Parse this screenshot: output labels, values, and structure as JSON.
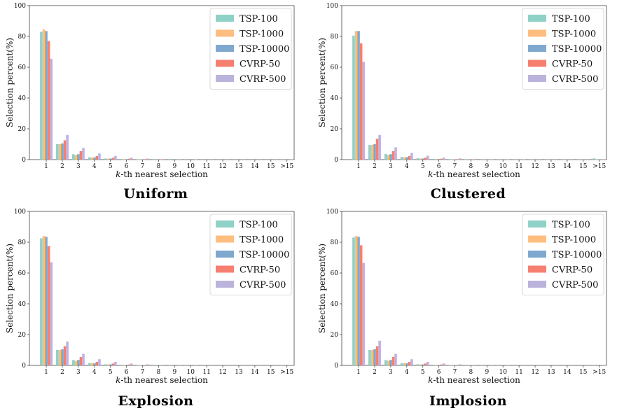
{
  "colors": [
    "#8fd1c6",
    "#ffbd7f",
    "#7fa8cf",
    "#f67f70",
    "#bcb3dc"
  ],
  "chart_data": [
    {
      "type": "bar",
      "title": "Uniform",
      "xlabel_prefix": "k",
      "xlabel_suffix": "-th nearest selection",
      "ylabel": "Selection percent(%)",
      "ylim": [
        0,
        100
      ],
      "yticks": [
        "0",
        "20",
        "40",
        "60",
        "80",
        "100"
      ],
      "categories": [
        "1",
        "2",
        "3",
        "4",
        "5",
        "6",
        "7",
        "8",
        "9",
        "10",
        "11",
        "12",
        "13",
        "14",
        "15",
        ">15"
      ],
      "legend_position": "top-right",
      "series": [
        {
          "name": "TSP-100",
          "values": [
            83.0,
            10.0,
            3.5,
            1.5,
            0.7,
            0.4,
            0.2,
            0.1,
            0.1,
            0.1,
            0.05,
            0.05,
            0.05,
            0.05,
            0.05,
            0.1
          ]
        },
        {
          "name": "TSP-1000",
          "values": [
            84.5,
            10.0,
            3.0,
            1.4,
            0.6,
            0.3,
            0.2,
            0.1,
            0.05,
            0.05,
            0.05,
            0.05,
            0.05,
            0.05,
            0.05,
            0.05
          ]
        },
        {
          "name": "TSP-10000",
          "values": [
            83.5,
            10.5,
            3.5,
            1.3,
            0.6,
            0.3,
            0.2,
            0.1,
            0.05,
            0.05,
            0.05,
            0.05,
            0.05,
            0.05,
            0.05,
            0.05
          ]
        },
        {
          "name": "CVRP-50",
          "values": [
            77.0,
            12.5,
            5.5,
            2.3,
            1.2,
            0.6,
            0.3,
            0.2,
            0.1,
            0.05,
            0.05,
            0.05,
            0.05,
            0.05,
            0.05,
            0.05
          ]
        },
        {
          "name": "CVRP-500",
          "values": [
            65.5,
            16.0,
            7.5,
            4.0,
            2.3,
            1.2,
            0.7,
            0.4,
            0.3,
            0.2,
            0.1,
            0.1,
            0.1,
            0.1,
            0.1,
            0.3
          ]
        }
      ]
    },
    {
      "type": "bar",
      "title": "Clustered",
      "xlabel_prefix": "k",
      "xlabel_suffix": "-th nearest selection",
      "ylabel": "Selection percent(%)",
      "ylim": [
        0,
        100
      ],
      "yticks": [
        "0",
        "20",
        "40",
        "60",
        "80",
        "100"
      ],
      "categories": [
        "1",
        "2",
        "3",
        "4",
        "5",
        "6",
        "7",
        "8",
        "9",
        "10",
        "11",
        "12",
        "13",
        "14",
        "15",
        ">15"
      ],
      "legend_position": "top-right",
      "series": [
        {
          "name": "TSP-100",
          "values": [
            80.5,
            9.5,
            3.7,
            1.8,
            0.9,
            0.5,
            0.3,
            0.2,
            0.1,
            0.1,
            0.1,
            0.1,
            0.1,
            0.1,
            0.1,
            0.8
          ]
        },
        {
          "name": "TSP-1000",
          "values": [
            83.5,
            9.5,
            3.0,
            1.5,
            0.7,
            0.4,
            0.2,
            0.1,
            0.1,
            0.1,
            0.1,
            0.1,
            0.1,
            0.1,
            0.1,
            0.2
          ]
        },
        {
          "name": "TSP-10000",
          "values": [
            83.5,
            10.0,
            3.5,
            1.5,
            0.7,
            0.4,
            0.2,
            0.1,
            0.1,
            0.1,
            0.1,
            0.1,
            0.1,
            0.1,
            0.1,
            0.2
          ]
        },
        {
          "name": "CVRP-50",
          "values": [
            75.5,
            13.5,
            5.5,
            2.3,
            1.2,
            0.6,
            0.3,
            0.2,
            0.1,
            0.1,
            0.1,
            0.1,
            0.1,
            0.1,
            0.1,
            0.1
          ]
        },
        {
          "name": "CVRP-500",
          "values": [
            63.5,
            16.0,
            8.0,
            4.3,
            2.5,
            1.3,
            0.8,
            0.5,
            0.3,
            0.2,
            0.2,
            0.1,
            0.1,
            0.1,
            0.1,
            0.3
          ]
        }
      ]
    },
    {
      "type": "bar",
      "title": "Explosion",
      "xlabel_prefix": "k",
      "xlabel_suffix": "-th nearest selection",
      "ylabel": "Selection percent(%)",
      "ylim": [
        0,
        100
      ],
      "yticks": [
        "0",
        "20",
        "40",
        "60",
        "80",
        "100"
      ],
      "categories": [
        "1",
        "2",
        "3",
        "4",
        "5",
        "6",
        "7",
        "8",
        "9",
        "10",
        "11",
        "12",
        "13",
        "14",
        "15",
        ">15"
      ],
      "legend_position": "top-right",
      "series": [
        {
          "name": "TSP-100",
          "values": [
            82.5,
            10.0,
            3.5,
            1.5,
            0.7,
            0.4,
            0.2,
            0.1,
            0.1,
            0.1,
            0.05,
            0.05,
            0.05,
            0.05,
            0.05,
            0.1
          ]
        },
        {
          "name": "TSP-1000",
          "values": [
            84.0,
            10.0,
            3.0,
            1.4,
            0.6,
            0.3,
            0.2,
            0.1,
            0.05,
            0.05,
            0.05,
            0.05,
            0.05,
            0.05,
            0.05,
            0.05
          ]
        },
        {
          "name": "TSP-10000",
          "values": [
            83.5,
            10.5,
            3.5,
            1.3,
            0.6,
            0.3,
            0.2,
            0.1,
            0.05,
            0.05,
            0.05,
            0.05,
            0.05,
            0.05,
            0.05,
            0.05
          ]
        },
        {
          "name": "CVRP-50",
          "values": [
            77.5,
            12.5,
            5.5,
            2.3,
            1.2,
            0.6,
            0.3,
            0.2,
            0.1,
            0.05,
            0.05,
            0.05,
            0.05,
            0.05,
            0.05,
            0.05
          ]
        },
        {
          "name": "CVRP-500",
          "values": [
            67.0,
            15.5,
            7.5,
            4.0,
            2.3,
            1.2,
            0.7,
            0.4,
            0.3,
            0.2,
            0.1,
            0.1,
            0.1,
            0.1,
            0.1,
            0.3
          ]
        }
      ]
    },
    {
      "type": "bar",
      "title": "Implosion",
      "xlabel_prefix": "k",
      "xlabel_suffix": "-th nearest selection",
      "ylabel": "Selection percent(%)",
      "ylim": [
        0,
        100
      ],
      "yticks": [
        "0",
        "20",
        "40",
        "60",
        "80",
        "100"
      ],
      "categories": [
        "1",
        "2",
        "3",
        "4",
        "5",
        "6",
        "7",
        "8",
        "9",
        "10",
        "11",
        "12",
        "13",
        "14",
        "15",
        ">15"
      ],
      "legend_position": "top-right",
      "series": [
        {
          "name": "TSP-100",
          "values": [
            83.0,
            10.0,
            3.5,
            1.5,
            0.7,
            0.4,
            0.2,
            0.1,
            0.1,
            0.1,
            0.05,
            0.05,
            0.05,
            0.05,
            0.05,
            0.1
          ]
        },
        {
          "name": "TSP-1000",
          "values": [
            84.0,
            10.0,
            3.0,
            1.4,
            0.6,
            0.3,
            0.2,
            0.1,
            0.05,
            0.05,
            0.05,
            0.05,
            0.05,
            0.05,
            0.05,
            0.05
          ]
        },
        {
          "name": "TSP-10000",
          "values": [
            83.5,
            10.5,
            3.5,
            1.3,
            0.6,
            0.3,
            0.2,
            0.1,
            0.05,
            0.05,
            0.05,
            0.05,
            0.05,
            0.05,
            0.05,
            0.05
          ]
        },
        {
          "name": "CVRP-50",
          "values": [
            78.0,
            12.5,
            5.5,
            2.3,
            1.2,
            0.6,
            0.3,
            0.2,
            0.1,
            0.05,
            0.05,
            0.05,
            0.05,
            0.05,
            0.05,
            0.05
          ]
        },
        {
          "name": "CVRP-500",
          "values": [
            66.5,
            16.0,
            7.5,
            4.0,
            2.3,
            1.2,
            0.7,
            0.4,
            0.3,
            0.2,
            0.1,
            0.1,
            0.1,
            0.1,
            0.1,
            0.3
          ]
        }
      ]
    }
  ]
}
